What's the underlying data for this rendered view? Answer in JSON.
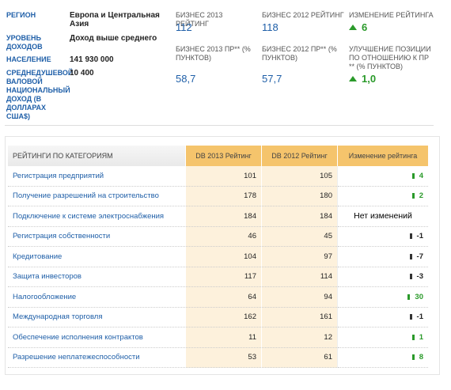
{
  "profile": [
    {
      "label": "Регион",
      "value": "Европа и Центральная Азия"
    },
    {
      "label": "Уровень доходов",
      "value": "Доход выше среднего"
    },
    {
      "label": "Население",
      "value": "141 930 000"
    },
    {
      "label": "Среднедушевой валовой национальный доход (в долларах США$)",
      "value": "10 400"
    }
  ],
  "summary": {
    "rank_2013_label": "Бизнес 2013 Рейтинг",
    "rank_2013": "112",
    "rank_2012_label": "Бизнес 2012 Рейтинг",
    "rank_2012": "118",
    "rank_change_label": "Изменение рейтинга",
    "rank_change": "6",
    "dtf_2013_label": "Бизнес 2013 ПР** (% пунктов)",
    "dtf_2013": "58,7",
    "dtf_2012_label": "Бизнес 2012 ПР** (% пунктов)",
    "dtf_2012": "57,7",
    "dtf_change_label": "Улучшение позиции по отношению к ПР ** (% пунктов)",
    "dtf_change": "1,0"
  },
  "table": {
    "headers": [
      "Рейтинги по категориям",
      "DB 2013 Рейтинг",
      "DB 2012 Рейтинг",
      "Изменение рейтинга"
    ],
    "rows": [
      [
        "Регистрация предприятий",
        "101",
        "105",
        "4"
      ],
      [
        "Получение разрешений на строительство",
        "178",
        "180",
        "2"
      ],
      [
        "Подключение к системе электроснабжения",
        "184",
        "184",
        "Нет изменений"
      ],
      [
        "Регистрация собственности",
        "46",
        "45",
        "-1"
      ],
      [
        "Кредитование",
        "104",
        "97",
        "-7"
      ],
      [
        "Защита инвесторов",
        "117",
        "114",
        "-3"
      ],
      [
        "Налогообложение",
        "64",
        "94",
        "30"
      ],
      [
        "Международная торговля",
        "162",
        "161",
        "-1"
      ],
      [
        "Обеспечение исполнения контрактов",
        "11",
        "12",
        "1"
      ],
      [
        "Разрешение неплатежеспособности",
        "53",
        "61",
        "8"
      ]
    ]
  }
}
